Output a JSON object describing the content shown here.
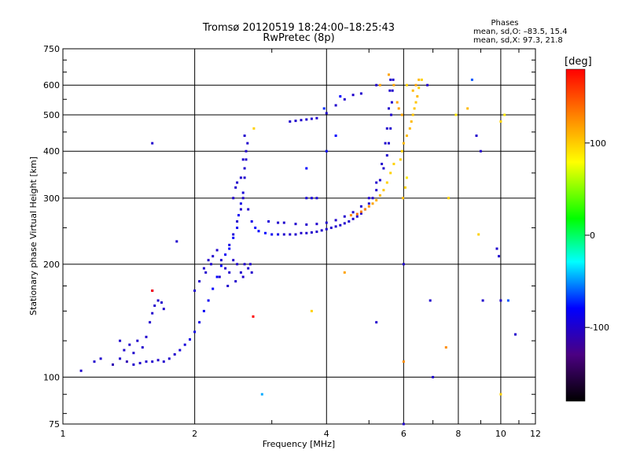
{
  "header": {
    "title_line1": "Tromsø 20120519 18:24:00–18:25:43",
    "title_line2": "RwPretec (8p)",
    "phases_title": "Phases",
    "phases_line1": "mean, sd,O: –83.5, 15.4",
    "phases_line2": "mean, sd,X:  97.3, 21.8"
  },
  "chart_data": {
    "type": "scatter",
    "title": "Tromsø 20120519 18:24:00–18:25:43",
    "subtitle": "RwPretec (8p)",
    "xlabel": "Frequency [MHz]",
    "ylabel": "Stationary phase Virtual Height [km]",
    "x_scale": "log",
    "y_scale": "log",
    "xlim": [
      1,
      12
    ],
    "ylim": [
      75,
      750
    ],
    "x_ticks": [
      1,
      2,
      4,
      6,
      8,
      10,
      12
    ],
    "x_tick_labels": [
      "1",
      "2",
      "4",
      "6",
      "8",
      "10",
      "12"
    ],
    "y_ticks": [
      75,
      100,
      200,
      300,
      400,
      500,
      600,
      750
    ],
    "y_tick_labels": [
      "75",
      "100",
      "200",
      "300",
      "400",
      "500",
      "600",
      "750"
    ],
    "grid": true,
    "colorbar": {
      "label": "[deg]",
      "range": [
        -180,
        180
      ],
      "ticks": [
        100,
        0,
        -100
      ],
      "tick_labels": [
        "100",
        "0",
        "-100"
      ]
    },
    "series": [
      {
        "points": [
          [
            1.1,
            104,
            -100
          ],
          [
            1.18,
            110,
            -100
          ],
          [
            1.22,
            112,
            -100
          ],
          [
            1.3,
            108,
            -110
          ],
          [
            1.35,
            112,
            -100
          ],
          [
            1.4,
            110,
            -110
          ],
          [
            1.45,
            108,
            -100
          ],
          [
            1.5,
            109,
            -100
          ],
          [
            1.55,
            110,
            -100
          ],
          [
            1.6,
            110,
            -100
          ],
          [
            1.65,
            111,
            -100
          ],
          [
            1.7,
            110,
            -100
          ],
          [
            1.75,
            112,
            -100
          ],
          [
            1.8,
            115,
            -100
          ],
          [
            1.85,
            118,
            -95
          ],
          [
            1.9,
            122,
            -95
          ],
          [
            1.95,
            126,
            -90
          ],
          [
            2.0,
            132,
            -90
          ],
          [
            2.05,
            140,
            -90
          ],
          [
            2.1,
            150,
            -85
          ],
          [
            2.15,
            160,
            -85
          ],
          [
            2.2,
            172,
            -80
          ],
          [
            2.25,
            185,
            -80
          ],
          [
            2.3,
            198,
            -80
          ],
          [
            2.35,
            212,
            -85
          ],
          [
            2.4,
            225,
            -90
          ],
          [
            2.45,
            240,
            -95
          ],
          [
            2.5,
            260,
            -100
          ],
          [
            2.55,
            280,
            -100
          ],
          [
            2.58,
            300,
            -100
          ],
          [
            2.6,
            340,
            -100
          ],
          [
            2.62,
            380,
            -100
          ],
          [
            2.64,
            420,
            -100
          ],
          [
            1.45,
            116,
            -100
          ],
          [
            1.48,
            125,
            -100
          ],
          [
            1.52,
            120,
            -100
          ],
          [
            1.55,
            128,
            -100
          ],
          [
            1.58,
            140,
            -100
          ],
          [
            1.6,
            148,
            -100
          ],
          [
            1.62,
            155,
            -100
          ],
          [
            1.65,
            160,
            -100
          ],
          [
            1.68,
            158,
            -100
          ],
          [
            1.7,
            152,
            -100
          ],
          [
            1.42,
            122,
            -100
          ],
          [
            1.38,
            118,
            -100
          ],
          [
            1.35,
            125,
            -100
          ],
          [
            1.6,
            170,
            -80
          ],
          [
            2.0,
            170,
            -100
          ],
          [
            2.05,
            180,
            -100
          ],
          [
            2.1,
            195,
            -100
          ],
          [
            2.15,
            205,
            -100
          ],
          [
            2.2,
            210,
            -100
          ],
          [
            2.25,
            218,
            -100
          ],
          [
            2.3,
            205,
            -100
          ],
          [
            2.35,
            195,
            -100
          ],
          [
            2.4,
            190,
            -100
          ],
          [
            2.45,
            205,
            -100
          ],
          [
            2.5,
            200,
            -100
          ],
          [
            2.55,
            190,
            -100
          ],
          [
            2.6,
            200,
            -100
          ],
          [
            2.65,
            195,
            -100
          ],
          [
            2.7,
            190,
            -100
          ],
          [
            2.12,
            190,
            -100
          ],
          [
            2.18,
            200,
            -100
          ],
          [
            2.28,
            185,
            -100
          ],
          [
            2.38,
            175,
            -100
          ],
          [
            2.48,
            180,
            -100
          ],
          [
            2.58,
            185,
            -100
          ],
          [
            2.68,
            200,
            -100
          ],
          [
            1.82,
            230,
            -100
          ],
          [
            2.4,
            220,
            -80
          ],
          [
            2.45,
            235,
            -80
          ],
          [
            2.5,
            250,
            -85
          ],
          [
            2.52,
            270,
            -85
          ],
          [
            2.55,
            290,
            -90
          ],
          [
            2.58,
            310,
            -95
          ],
          [
            2.5,
            330,
            -100
          ],
          [
            2.45,
            300,
            -100
          ],
          [
            2.48,
            320,
            -100
          ],
          [
            2.55,
            340,
            -100
          ],
          [
            2.6,
            360,
            -100
          ],
          [
            2.58,
            380,
            -100
          ],
          [
            2.62,
            400,
            -100
          ],
          [
            2.6,
            440,
            -100
          ],
          [
            2.65,
            280,
            -100
          ],
          [
            2.7,
            260,
            -90
          ],
          [
            2.75,
            250,
            -80
          ],
          [
            2.8,
            245,
            -80
          ],
          [
            2.9,
            242,
            -80
          ],
          [
            3.0,
            240,
            -85
          ],
          [
            3.1,
            240,
            -90
          ],
          [
            3.2,
            240,
            -100
          ],
          [
            3.3,
            240,
            -100
          ],
          [
            3.4,
            240,
            -100
          ],
          [
            3.5,
            242,
            -100
          ],
          [
            3.6,
            242,
            -100
          ],
          [
            3.7,
            243,
            -100
          ],
          [
            3.8,
            244,
            -100
          ],
          [
            3.9,
            246,
            -100
          ],
          [
            4.0,
            248,
            -100
          ],
          [
            4.1,
            250,
            -100
          ],
          [
            4.2,
            252,
            -100
          ],
          [
            4.3,
            254,
            -100
          ],
          [
            4.4,
            257,
            -100
          ],
          [
            4.5,
            260,
            -100
          ],
          [
            4.6,
            264,
            -100
          ],
          [
            4.7,
            268,
            -100
          ],
          [
            4.8,
            273,
            -100
          ],
          [
            4.9,
            280,
            -100
          ],
          [
            5.0,
            290,
            -100
          ],
          [
            5.1,
            300,
            -100
          ],
          [
            5.2,
            315,
            -100
          ],
          [
            5.3,
            335,
            -100
          ],
          [
            5.4,
            360,
            -100
          ],
          [
            5.5,
            390,
            -100
          ],
          [
            5.55,
            420,
            -100
          ],
          [
            5.6,
            460,
            -100
          ],
          [
            5.62,
            500,
            -100
          ],
          [
            5.64,
            540,
            -100
          ],
          [
            5.66,
            580,
            -100
          ],
          [
            5.68,
            620,
            -100
          ],
          [
            2.95,
            260,
            -95
          ],
          [
            3.1,
            258,
            -100
          ],
          [
            3.2,
            258,
            -100
          ],
          [
            3.4,
            256,
            -100
          ],
          [
            3.6,
            255,
            -100
          ],
          [
            3.8,
            256,
            -100
          ],
          [
            4.0,
            258,
            -100
          ],
          [
            4.2,
            262,
            -100
          ],
          [
            4.4,
            268,
            -100
          ],
          [
            4.6,
            275,
            -100
          ],
          [
            4.8,
            285,
            -100
          ],
          [
            5.0,
            300,
            -100
          ],
          [
            5.2,
            330,
            -100
          ],
          [
            5.35,
            370,
            -100
          ],
          [
            5.45,
            420,
            -100
          ],
          [
            5.5,
            460,
            -100
          ],
          [
            5.55,
            520,
            -100
          ],
          [
            5.58,
            580,
            -100
          ],
          [
            5.6,
            620,
            -100
          ],
          [
            4.55,
            270,
            130
          ],
          [
            4.7,
            272,
            140
          ],
          [
            4.8,
            276,
            135
          ],
          [
            4.9,
            280,
            130
          ],
          [
            5.0,
            285,
            125
          ],
          [
            5.1,
            290,
            120
          ],
          [
            5.2,
            296,
            115
          ],
          [
            5.3,
            305,
            110
          ],
          [
            5.4,
            315,
            105
          ],
          [
            5.5,
            330,
            100
          ],
          [
            5.6,
            350,
            100
          ],
          [
            5.7,
            370,
            100
          ],
          [
            5.9,
            380,
            100
          ],
          [
            5.95,
            400,
            100
          ],
          [
            6.0,
            420,
            110
          ],
          [
            6.1,
            440,
            110
          ],
          [
            6.2,
            460,
            110
          ],
          [
            6.25,
            480,
            110
          ],
          [
            6.3,
            500,
            105
          ],
          [
            6.35,
            520,
            105
          ],
          [
            6.4,
            540,
            105
          ],
          [
            6.45,
            560,
            110
          ],
          [
            6.5,
            590,
            100
          ],
          [
            3.3,
            480,
            -100
          ],
          [
            3.4,
            482,
            -100
          ],
          [
            3.5,
            484,
            -100
          ],
          [
            3.6,
            486,
            -100
          ],
          [
            3.7,
            488,
            -100
          ],
          [
            3.8,
            490,
            -100
          ],
          [
            4.0,
            505,
            -100
          ],
          [
            4.2,
            530,
            -100
          ],
          [
            4.4,
            550,
            -100
          ],
          [
            4.6,
            565,
            -100
          ],
          [
            4.8,
            570,
            -100
          ],
          [
            3.6,
            300,
            -95
          ],
          [
            3.7,
            300,
            -95
          ],
          [
            3.8,
            300,
            -95
          ],
          [
            3.95,
            520,
            -70
          ],
          [
            4.3,
            560,
            -80
          ],
          [
            3.6,
            360,
            -80
          ],
          [
            4.0,
            400,
            -80
          ],
          [
            4.2,
            440,
            -80
          ],
          [
            5.3,
            600,
            120
          ],
          [
            5.55,
            640,
            120
          ],
          [
            5.7,
            600,
            120
          ],
          [
            5.8,
            540,
            120
          ],
          [
            5.85,
            520,
            120
          ],
          [
            5.95,
            500,
            120
          ],
          [
            1.6,
            170,
            180
          ],
          [
            2.72,
            145,
            180
          ],
          [
            5.98,
            300,
            110
          ],
          [
            6.05,
            320,
            100
          ],
          [
            6.1,
            340,
            90
          ],
          [
            6.0,
            200,
            -100
          ],
          [
            6.0,
            110,
            130
          ],
          [
            6.0,
            75,
            -100
          ],
          [
            6.1,
            600,
            100
          ],
          [
            6.3,
            580,
            110
          ],
          [
            6.4,
            600,
            120
          ],
          [
            6.5,
            620,
            110
          ],
          [
            6.6,
            620,
            100
          ],
          [
            6.8,
            600,
            -100
          ],
          [
            6.9,
            160,
            -100
          ],
          [
            7.0,
            100,
            -100
          ],
          [
            7.5,
            120,
            130
          ],
          [
            7.6,
            300,
            100
          ],
          [
            7.9,
            500,
            90
          ],
          [
            8.4,
            520,
            110
          ],
          [
            8.6,
            620,
            -60
          ],
          [
            8.8,
            440,
            -100
          ],
          [
            8.9,
            240,
            100
          ],
          [
            9.0,
            400,
            -100
          ],
          [
            9.1,
            160,
            -100
          ],
          [
            9.8,
            220,
            -100
          ],
          [
            9.9,
            210,
            -100
          ],
          [
            10.0,
            480,
            100
          ],
          [
            10.0,
            160,
            -100
          ],
          [
            10.0,
            90,
            100
          ],
          [
            10.2,
            500,
            90
          ],
          [
            10.4,
            160,
            -60
          ],
          [
            10.8,
            130,
            -100
          ],
          [
            2.85,
            90,
            -40
          ],
          [
            1.6,
            420,
            -100
          ],
          [
            2.73,
            460,
            100
          ],
          [
            3.7,
            150,
            100
          ],
          [
            4.4,
            190,
            120
          ],
          [
            5.2,
            140,
            -100
          ],
          [
            5.2,
            600,
            -100
          ]
        ]
      }
    ]
  }
}
